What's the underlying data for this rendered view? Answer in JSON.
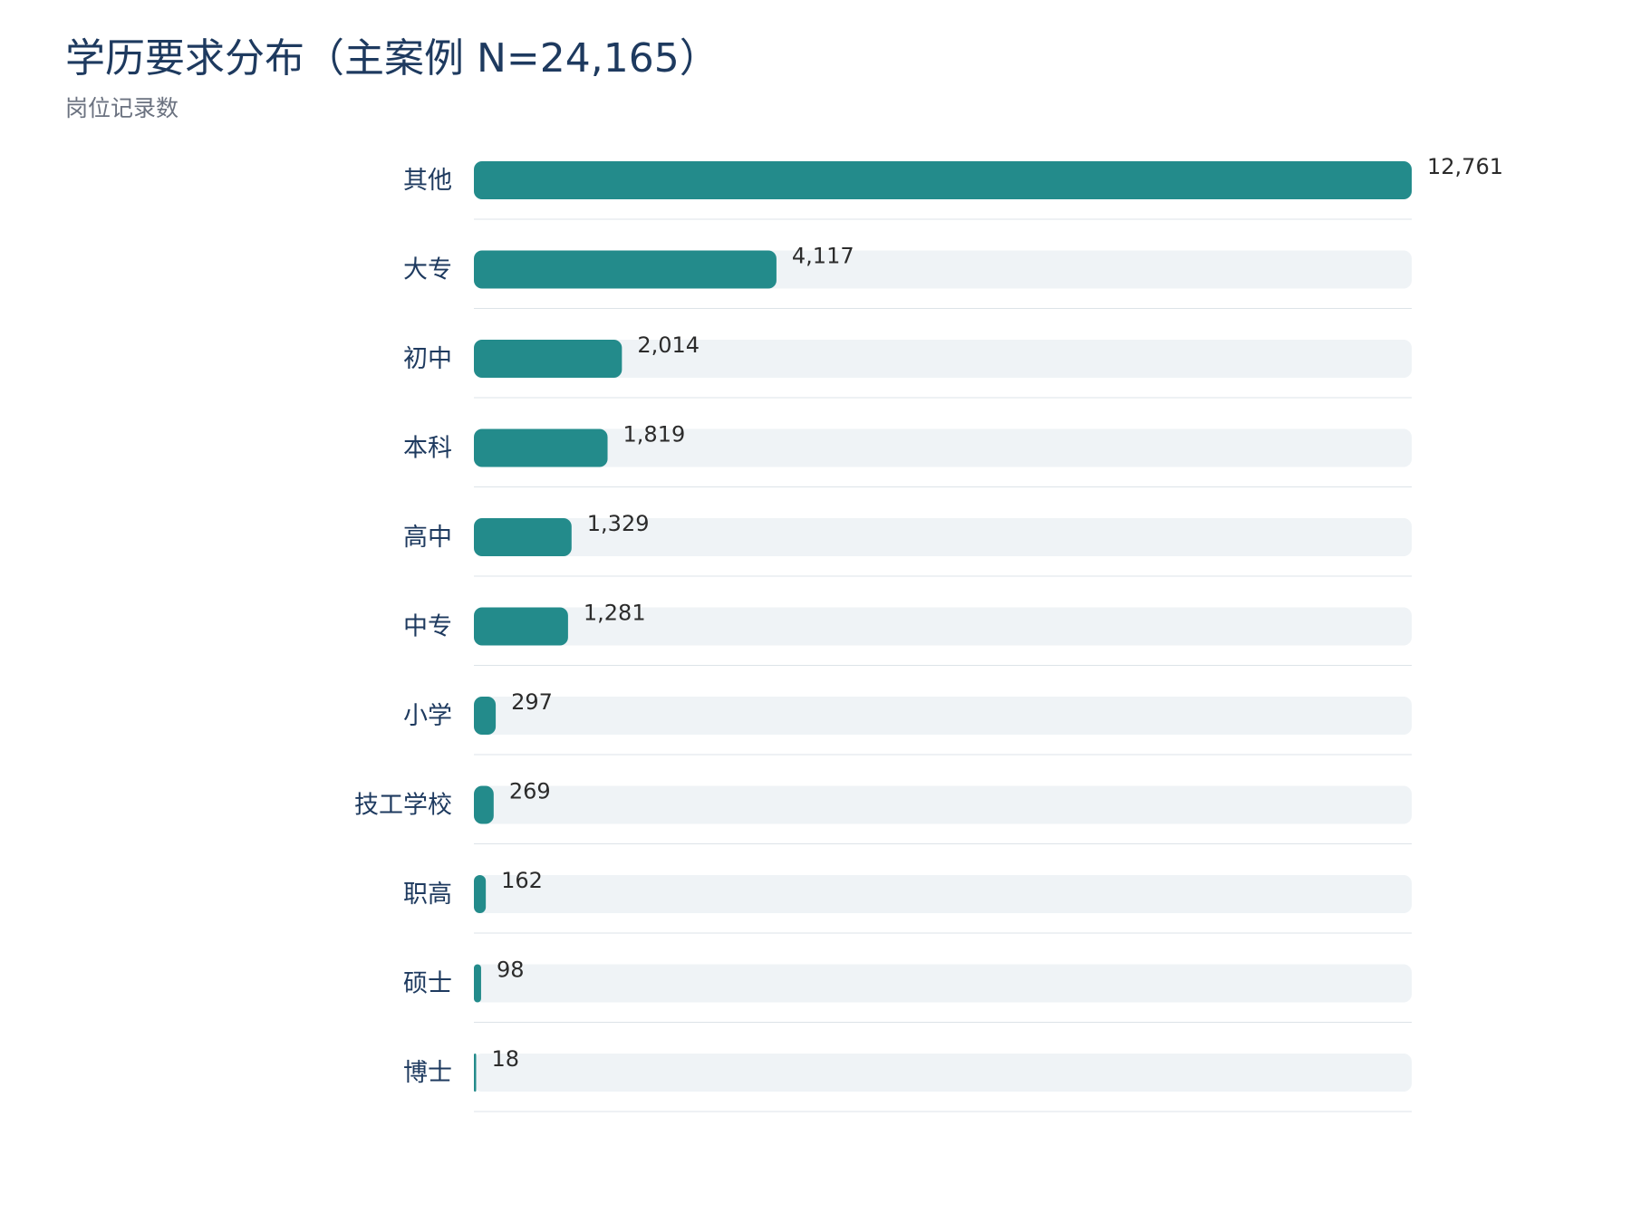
{
  "chart_data": {
    "type": "bar",
    "orientation": "horizontal",
    "title": "学历要求分布（主案例 N=24,165）",
    "subtitle": "岗位记录数",
    "categories": [
      "其他",
      "大专",
      "初中",
      "本科",
      "高中",
      "中专",
      "小学",
      "技工学校",
      "职高",
      "硕士",
      "博士"
    ],
    "values": [
      12761,
      4117,
      2014,
      1819,
      1329,
      1281,
      297,
      269,
      162,
      98,
      18
    ],
    "value_labels": [
      "12,761",
      "4,117",
      "2,014",
      "1,819",
      "1,329",
      "1,281",
      "297",
      "269",
      "162",
      "98",
      "18"
    ],
    "xlim": [
      0,
      12761
    ],
    "grid": false,
    "legend": "none",
    "colors": {
      "bar": "#238b8b",
      "track": "#eff3f6",
      "separator": "#dde3e8",
      "title": "#1e3a5f",
      "subtitle": "#6b7280"
    }
  }
}
